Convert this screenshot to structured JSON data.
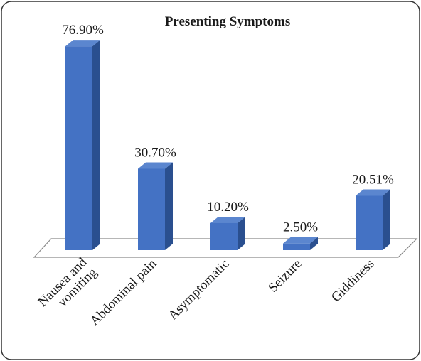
{
  "chart_data": {
    "type": "bar",
    "title": "Presenting Symptoms",
    "categories": [
      [
        "Nausea and",
        "vomiting"
      ],
      [
        "Abdominal pain"
      ],
      [
        "Asymptomatic"
      ],
      [
        "Seizure"
      ],
      [
        "Giddiness"
      ]
    ],
    "values": [
      76.9,
      30.7,
      10.2,
      2.5,
      20.51
    ],
    "data_labels": [
      "76.90%",
      "30.70%",
      "10.20%",
      "2.50%",
      "20.51%"
    ],
    "colors": {
      "bar_front": "#4472c4",
      "bar_side": "#2a4f8f",
      "bar_top": "#5b86cf",
      "floor": "#ffffff",
      "floor_edge": "#8a8a8a",
      "border": "#333333"
    },
    "grid": false,
    "legend": "none",
    "style": "3d-column"
  }
}
